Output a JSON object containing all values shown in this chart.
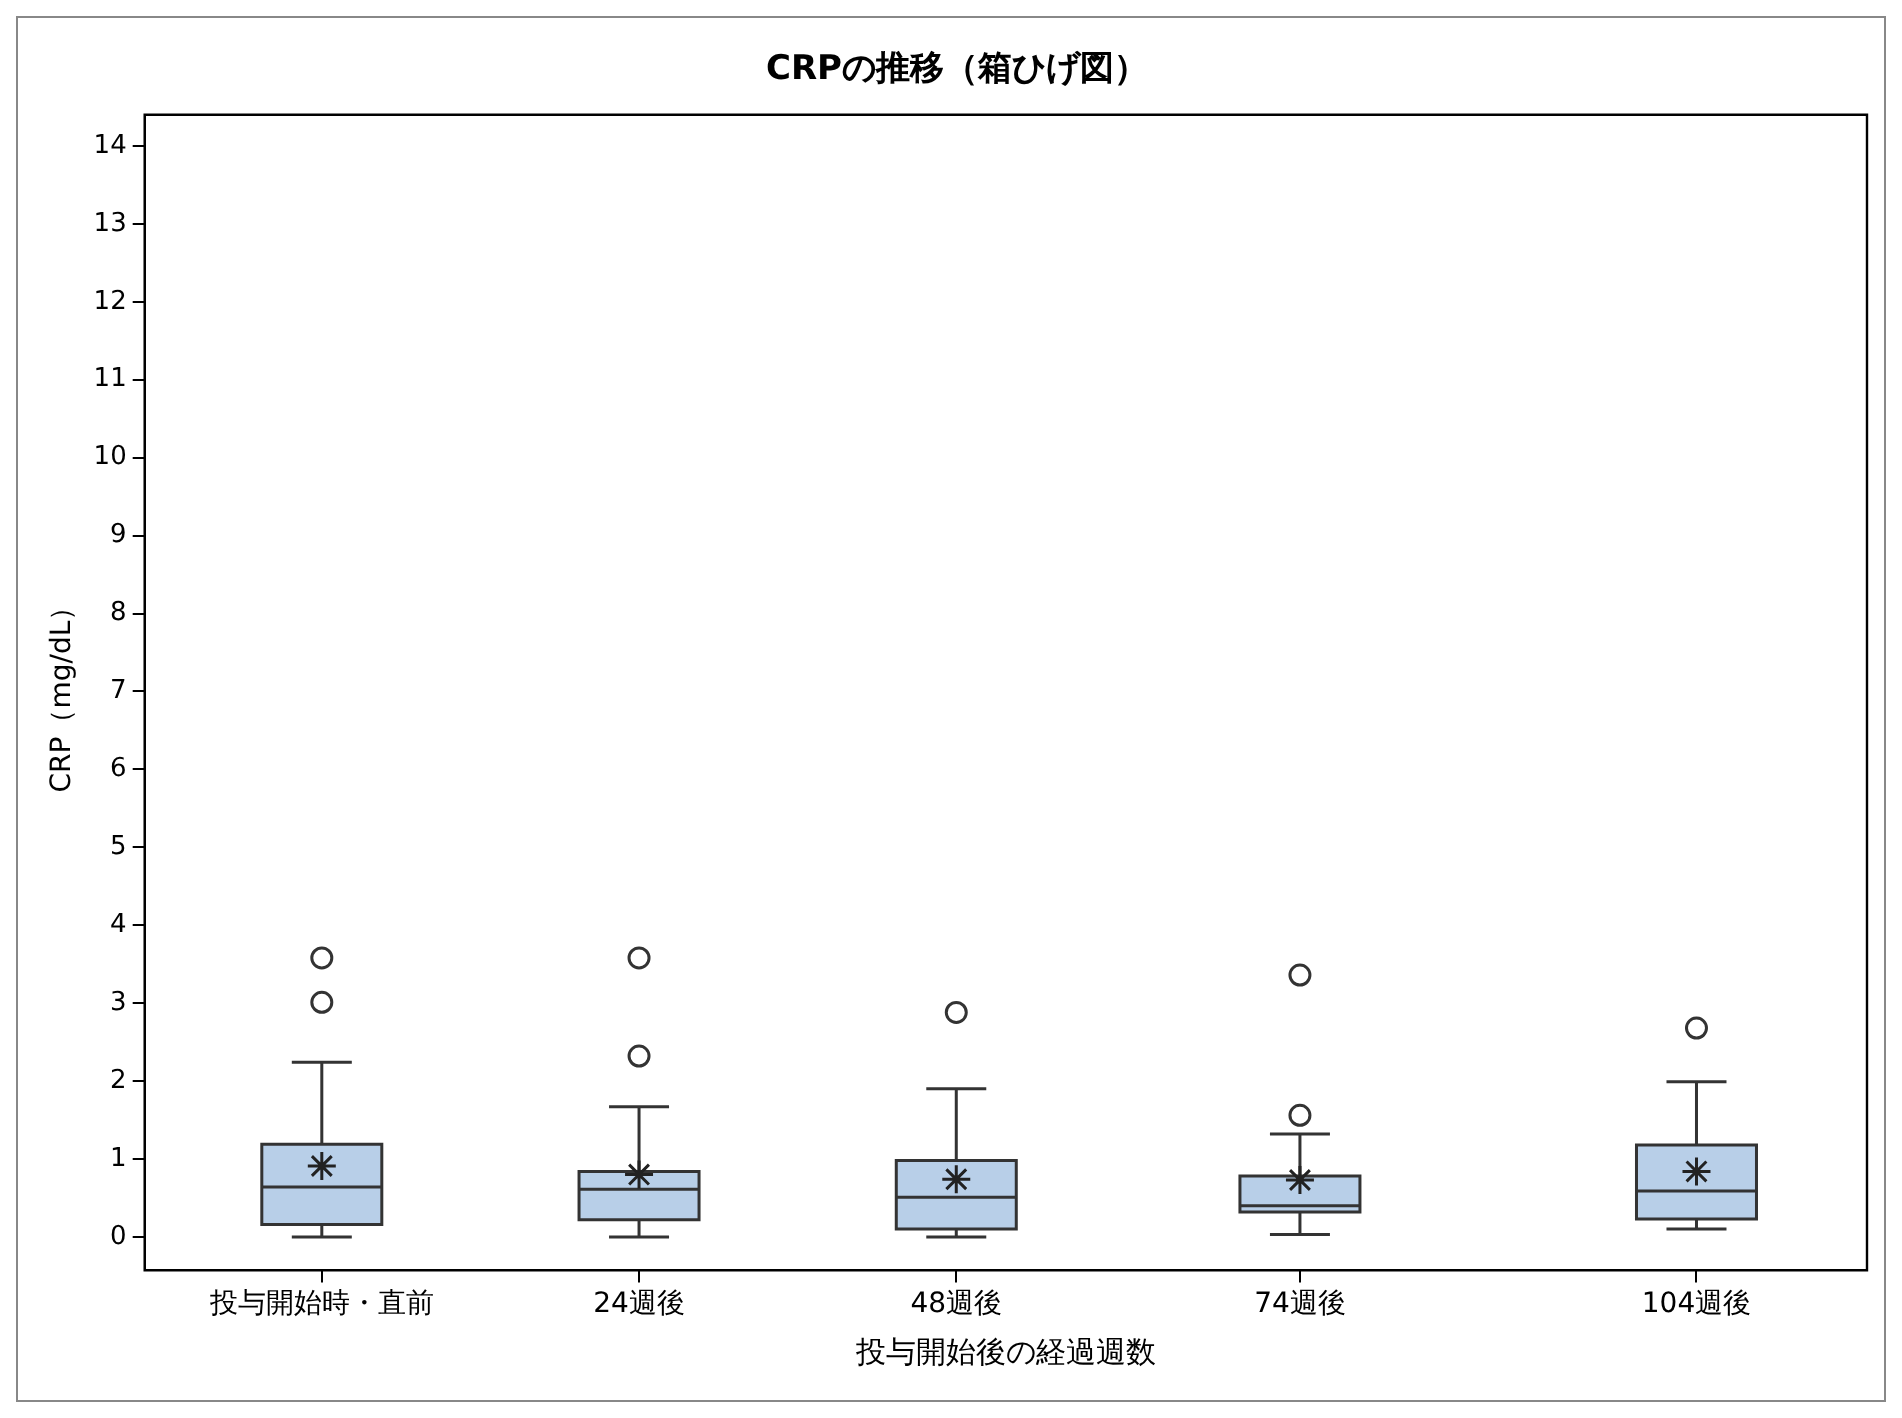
{
  "chart_data": {
    "type": "box",
    "title": "CRPの推移（箱ひげ図）",
    "xlabel": "投与開始後の経過週数",
    "ylabel": "CRP（mg/dL）",
    "x": [
      0,
      24,
      48,
      74,
      104
    ],
    "xlim": [
      -13.4,
      116.9
    ],
    "xticks": [
      {
        "value": 0,
        "label": "投与開始時・直前"
      },
      {
        "value": 24,
        "label": "24週後"
      },
      {
        "value": 48,
        "label": "48週後"
      },
      {
        "value": 74,
        "label": "74週後"
      },
      {
        "value": 104,
        "label": "104週後"
      }
    ],
    "ylim": [
      -0.43,
      14.4
    ],
    "yticks": [
      0,
      1,
      2,
      3,
      4,
      5,
      6,
      7,
      8,
      9,
      10,
      11,
      12,
      13,
      14
    ],
    "series": [
      {
        "color": "#b8cfe8",
        "boxes": [
          {
            "low": 0,
            "q1": 0.16,
            "median": 0.64,
            "q3": 1.19,
            "high": 2.24,
            "mean": 0.91,
            "outliers": [
              3.01,
              3.58
            ]
          },
          {
            "low": 0,
            "q1": 0.22,
            "median": 0.61,
            "q3": 0.84,
            "high": 1.67,
            "mean": 0.8,
            "outliers": [
              2.32,
              3.58
            ]
          },
          {
            "low": 0,
            "q1": 0.1,
            "median": 0.51,
            "q3": 0.98,
            "high": 1.9,
            "mean": 0.74,
            "outliers": [
              2.88
            ]
          },
          {
            "low": 0.03,
            "q1": 0.32,
            "median": 0.4,
            "q3": 0.78,
            "high": 1.32,
            "mean": 0.73,
            "outliers": [
              1.56,
              3.36
            ]
          },
          {
            "low": 0.1,
            "q1": 0.23,
            "median": 0.59,
            "q3": 1.18,
            "high": 1.99,
            "mean": 0.84,
            "outliers": [
              2.68
            ]
          }
        ]
      }
    ],
    "marker": "circle",
    "grid": false,
    "legend": false
  }
}
